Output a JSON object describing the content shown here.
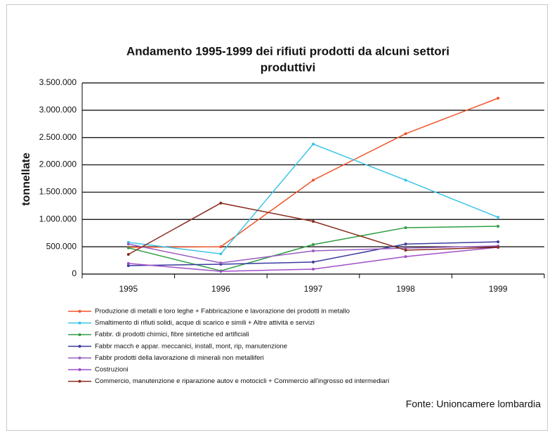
{
  "chart_data": {
    "type": "line",
    "title": [
      "Andamento 1995-1999 dei rifiuti prodotti da alcuni settori",
      "produttivi"
    ],
    "y_label": "tonnellate",
    "source": "Fonte: Unioncamere lombardia",
    "categories": [
      "1995",
      "1996",
      "1997",
      "1998",
      "1999"
    ],
    "ylim": [
      0,
      3500000
    ],
    "yticks": [
      0,
      {
        "value": 500000,
        "label": "500.000"
      },
      {
        "value": 1000000,
        "label": "1.000.000"
      },
      {
        "value": 1500000,
        "label": "1.500.000"
      },
      {
        "value": 2000000,
        "label": "2.000.000"
      },
      {
        "value": 2500000,
        "label": "2.500.000"
      },
      {
        "value": 3000000,
        "label": "3.000.000"
      },
      {
        "value": 3500000,
        "label": "3.500.000"
      }
    ],
    "grid": true,
    "series": [
      {
        "name": "Produzione di metalli e loro leghe + Fabbricazione e lavorazione dei prodotti in metallo",
        "color": "#f0552a",
        "values": [
          490000,
          500000,
          1720000,
          2570000,
          3220000
        ]
      },
      {
        "name": "Smaltimento di rifiuti solidi, acque di scarico e simili + Altre attività e servizi",
        "color": "#3cc4e8",
        "values": [
          580000,
          370000,
          2380000,
          1720000,
          1040000
        ]
      },
      {
        "name": "Fabbr. di prodotti chimici, fibre sintetiche ed artificiali",
        "color": "#2f9e44",
        "values": [
          480000,
          60000,
          540000,
          850000,
          875000
        ]
      },
      {
        "name": "Fabbr macch e appar. meccanici, install, mont, rip, manutenzione",
        "color": "#3b3ba0",
        "values": [
          155000,
          180000,
          220000,
          550000,
          590000
        ]
      },
      {
        "name": "Fabbr prodotti della lavorazione di minerali non metalliferi",
        "color": "#9a5cc0",
        "values": [
          550000,
          205000,
          425000,
          475000,
          515000
        ]
      },
      {
        "name": "Costruzioni",
        "color": "#a04fc8",
        "values": [
          195000,
          50000,
          90000,
          320000,
          490000
        ]
      },
      {
        "name": "Commercio, manutenzione e riparazione autov e motocicli + Commercio all'ingrosso ed intermediari",
        "color": "#8b2a1c",
        "values": [
          360000,
          1300000,
          965000,
          437000,
          490000
        ]
      }
    ]
  }
}
